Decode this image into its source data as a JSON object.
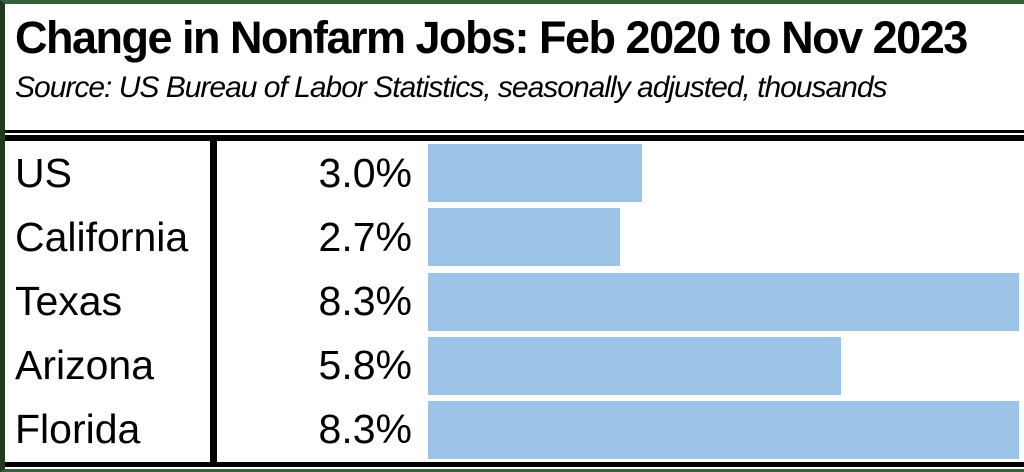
{
  "header": {
    "title": "Change in Nonfarm Jobs:  Feb 2020 to Nov 2023",
    "source": "Source:  US Bureau of Labor Statistics, seasonally adjusted, thousands"
  },
  "chart_data": {
    "type": "bar",
    "orientation": "horizontal",
    "title": "Change in Nonfarm Jobs:  Feb 2020 to Nov 2023",
    "subtitle": "Source:  US Bureau of Labor Statistics, seasonally adjusted, thousands",
    "categories": [
      "US",
      "California",
      "Texas",
      "Arizona",
      "Florida"
    ],
    "values": [
      3.0,
      2.7,
      8.3,
      5.8,
      8.3
    ],
    "value_labels": [
      "3.0%",
      "2.7%",
      "8.3%",
      "5.8%",
      "8.3%"
    ],
    "xlabel": "",
    "ylabel": "",
    "xlim": [
      0,
      8.3
    ],
    "grid": false,
    "legend": false,
    "bar_color": "#9DC3E6"
  },
  "colors": {
    "bar_blue": "#9DC3E6",
    "axis_black": "#000000",
    "border_green": "#35603C"
  }
}
